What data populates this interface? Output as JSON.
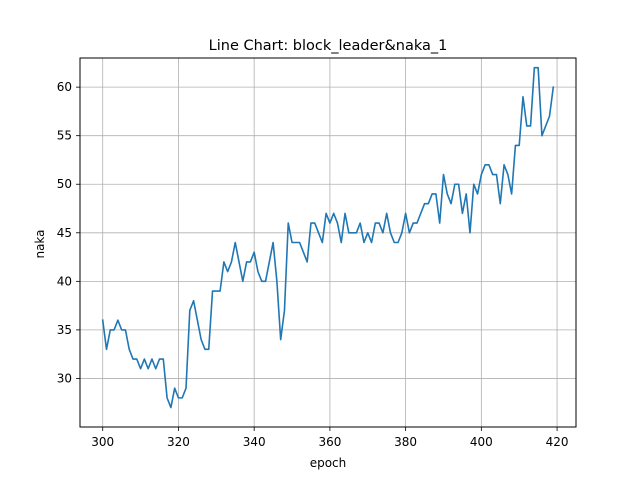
{
  "chart_data": {
    "type": "line",
    "title": "Line Chart: block_leader&naka_1",
    "xlabel": "epoch",
    "ylabel": "naka",
    "xlim": [
      300,
      420
    ],
    "ylim": [
      25,
      63
    ],
    "grid": true,
    "xticks": [
      300,
      320,
      340,
      360,
      380,
      400,
      420
    ],
    "yticks": [
      30,
      35,
      40,
      45,
      50,
      55,
      60
    ],
    "series": [
      {
        "color": "#1f77b4",
        "x": [
          300,
          301,
          302,
          303,
          304,
          305,
          306,
          307,
          308,
          309,
          310,
          311,
          312,
          313,
          314,
          315,
          316,
          317,
          318,
          319,
          320,
          321,
          322,
          323,
          324,
          325,
          326,
          327,
          328,
          329,
          330,
          331,
          332,
          333,
          334,
          335,
          336,
          337,
          338,
          339,
          340,
          341,
          342,
          343,
          344,
          345,
          346,
          347,
          348,
          349,
          350,
          351,
          352,
          353,
          354,
          355,
          356,
          357,
          358,
          359,
          360,
          361,
          362,
          363,
          364,
          365,
          366,
          367,
          368,
          369,
          370,
          371,
          372,
          373,
          374,
          375,
          376,
          377,
          378,
          379,
          380,
          381,
          382,
          383,
          384,
          385,
          386,
          387,
          388,
          389,
          390,
          391,
          392,
          393,
          394,
          395,
          396,
          397,
          398,
          399,
          400,
          401,
          402,
          403,
          404,
          405,
          406,
          407,
          408,
          409,
          410,
          411,
          412,
          413,
          414,
          415,
          416,
          417,
          418,
          419
        ],
        "y": [
          36,
          33,
          35,
          35,
          36,
          35,
          35,
          33,
          32,
          32,
          31,
          32,
          31,
          32,
          31,
          32,
          32,
          28,
          27,
          29,
          28,
          28,
          29,
          37,
          38,
          36,
          34,
          33,
          33,
          39,
          39,
          39,
          42,
          41,
          42,
          44,
          42,
          40,
          42,
          42,
          43,
          41,
          40,
          40,
          42,
          44,
          40,
          34,
          37,
          46,
          44,
          44,
          44,
          43,
          42,
          46,
          46,
          45,
          44,
          47,
          46,
          47,
          46,
          44,
          47,
          45,
          45,
          45,
          46,
          44,
          45,
          44,
          46,
          46,
          45,
          47,
          45,
          44,
          44,
          45,
          47,
          45,
          46,
          46,
          47,
          48,
          48,
          49,
          49,
          46,
          51,
          49,
          48,
          50,
          50,
          47,
          49,
          45,
          50,
          49,
          51,
          52,
          52,
          51,
          51,
          48,
          52,
          51,
          49,
          54,
          54,
          59,
          56,
          56,
          62,
          62,
          55,
          56,
          57,
          60
        ]
      }
    ]
  }
}
